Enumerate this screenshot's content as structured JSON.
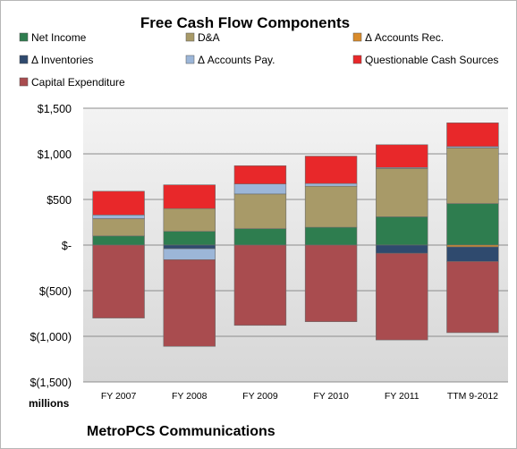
{
  "chart_data": {
    "type": "bar",
    "stacked": true,
    "title": "Free Cash Flow Components",
    "units_label": "millions",
    "caption": "MetroPCS Communications",
    "categories": [
      "FY 2007",
      "FY 2008",
      "FY 2009",
      "FY 2010",
      "FY 2011",
      "TTM 9-2012"
    ],
    "ylim": [
      -1500,
      1500
    ],
    "yticks": [
      -1500,
      -1000,
      -500,
      0,
      500,
      1000,
      1500
    ],
    "ytick_labels": [
      "$(1,500)",
      "$(1,000)",
      "$(500)",
      "$-",
      "$500",
      "$1,000",
      "$1,500"
    ],
    "grid": true,
    "legend_position": "top",
    "series": [
      {
        "name": "Net Income",
        "color": "#2e7d4f",
        "values": [
          100,
          150,
          180,
          195,
          310,
          455
        ]
      },
      {
        "name": "D&A",
        "color": "#a89a68",
        "values": [
          190,
          250,
          380,
          450,
          530,
          610
        ]
      },
      {
        "name": "Δ Accounts Rec.",
        "color": "#d98b2b",
        "values": [
          0,
          0,
          0,
          0,
          0,
          -20
        ]
      },
      {
        "name": "Δ Inventories",
        "color": "#2f4a6e",
        "values": [
          0,
          -40,
          0,
          0,
          -90,
          -160
        ]
      },
      {
        "name": "Δ Accounts Pay.",
        "color": "#9cb6d8",
        "values": [
          40,
          -120,
          110,
          30,
          10,
          15
        ]
      },
      {
        "name": "Questionable Cash Sources",
        "color": "#e8282a",
        "values": [
          260,
          260,
          200,
          300,
          250,
          260
        ]
      },
      {
        "name": "Capital Expenditure",
        "color": "#a94c4f",
        "values": [
          -800,
          -950,
          -880,
          -840,
          -950,
          -780
        ]
      }
    ]
  }
}
